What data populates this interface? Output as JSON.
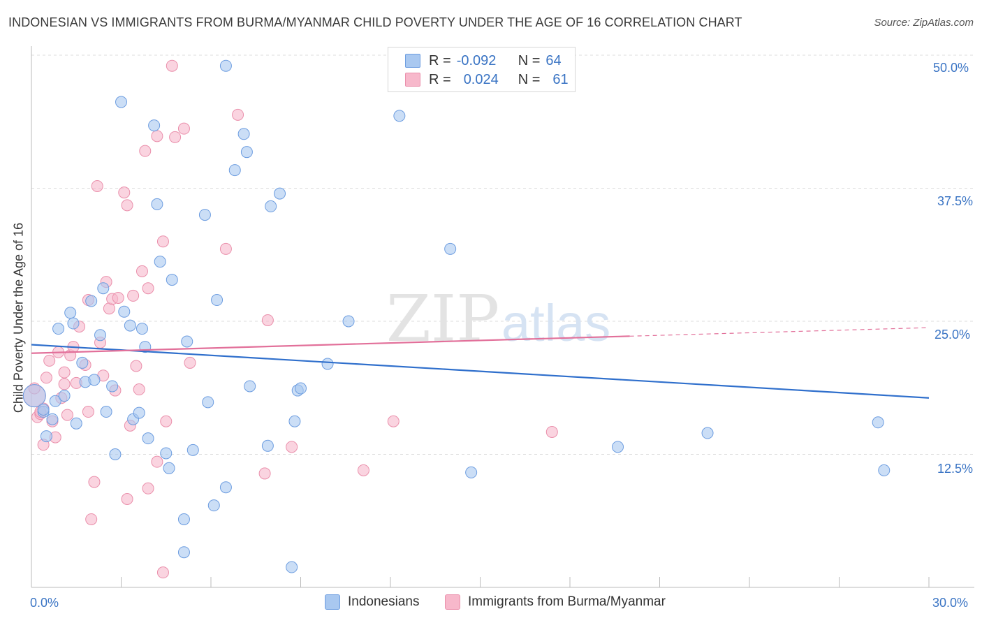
{
  "header": {
    "title": "INDONESIAN VS IMMIGRANTS FROM BURMA/MYANMAR CHILD POVERTY UNDER THE AGE OF 16 CORRELATION CHART",
    "source": "Source: ZipAtlas.com"
  },
  "watermark": {
    "zip": "ZIP",
    "atlas": "atlas"
  },
  "legend": {
    "rows": [
      {
        "r_label": "R =",
        "r_value": "-0.092",
        "n_label": "N =",
        "n_value": "64"
      },
      {
        "r_label": "R =",
        "r_value": "0.024",
        "n_label": "N =",
        "n_value": "61"
      }
    ]
  },
  "bottom_legend": {
    "series1": "Indonesians",
    "series2": "Immigrants from Burma/Myanmar"
  },
  "colors": {
    "series1_fill": "#a9c8f0",
    "series1_stroke": "#6d9de0",
    "series1_line": "#2f6fcc",
    "series2_fill": "#f7b8cb",
    "series2_stroke": "#ea8fab",
    "series2_line": "#e2709a",
    "tick_text": "#3a74c4",
    "grid": "#dddddd"
  },
  "chart_data": {
    "type": "scatter",
    "title": "INDONESIAN VS IMMIGRANTS FROM BURMA/MYANMAR CHILD POVERTY UNDER THE AGE OF 16 CORRELATION CHART",
    "xlabel": "",
    "ylabel": "Child Poverty Under the Age of 16",
    "xlim": [
      0,
      30
    ],
    "ylim": [
      0,
      50
    ],
    "x_tick_labels": [
      "0.0%",
      "30.0%"
    ],
    "y_ticks": [
      12.5,
      25.0,
      37.5,
      50.0
    ],
    "y_tick_labels": [
      "12.5%",
      "25.0%",
      "37.5%",
      "50.0%"
    ],
    "grid": "horizontal dashed",
    "legend_position": "top-center",
    "series": [
      {
        "name": "Indonesians",
        "r": -0.092,
        "n": 64,
        "trend": {
          "x": [
            0,
            30
          ],
          "y": [
            22.8,
            17.8
          ]
        },
        "points": [
          [
            0.1,
            18.0
          ],
          [
            0.4,
            16.5
          ],
          [
            0.4,
            16.7
          ],
          [
            0.5,
            14.2
          ],
          [
            0.7,
            15.8
          ],
          [
            0.8,
            17.5
          ],
          [
            0.9,
            24.3
          ],
          [
            1.1,
            18.0
          ],
          [
            1.3,
            25.8
          ],
          [
            1.4,
            24.8
          ],
          [
            1.5,
            15.4
          ],
          [
            1.7,
            21.1
          ],
          [
            1.8,
            19.3
          ],
          [
            2.0,
            26.9
          ],
          [
            2.1,
            19.5
          ],
          [
            2.3,
            23.7
          ],
          [
            2.4,
            28.1
          ],
          [
            2.5,
            16.5
          ],
          [
            2.7,
            18.9
          ],
          [
            2.8,
            12.5
          ],
          [
            3.0,
            45.6
          ],
          [
            3.1,
            25.9
          ],
          [
            3.3,
            24.6
          ],
          [
            3.4,
            15.8
          ],
          [
            3.6,
            16.4
          ],
          [
            3.7,
            24.3
          ],
          [
            3.8,
            22.6
          ],
          [
            3.9,
            14.0
          ],
          [
            4.1,
            43.4
          ],
          [
            4.2,
            36.0
          ],
          [
            4.3,
            30.6
          ],
          [
            4.5,
            12.6
          ],
          [
            4.6,
            11.2
          ],
          [
            4.7,
            28.9
          ],
          [
            5.1,
            6.4
          ],
          [
            5.1,
            3.3
          ],
          [
            5.2,
            23.1
          ],
          [
            5.4,
            12.9
          ],
          [
            5.8,
            35.0
          ],
          [
            5.9,
            17.4
          ],
          [
            6.1,
            7.7
          ],
          [
            6.2,
            27.0
          ],
          [
            6.5,
            49.0
          ],
          [
            6.5,
            9.4
          ],
          [
            6.8,
            39.2
          ],
          [
            7.1,
            42.6
          ],
          [
            7.2,
            40.9
          ],
          [
            7.3,
            18.9
          ],
          [
            7.9,
            13.3
          ],
          [
            8.0,
            35.8
          ],
          [
            8.3,
            37.0
          ],
          [
            8.7,
            1.9
          ],
          [
            8.8,
            15.6
          ],
          [
            8.9,
            18.5
          ],
          [
            9.0,
            18.7
          ],
          [
            9.9,
            21.0
          ],
          [
            10.6,
            25.0
          ],
          [
            12.3,
            44.3
          ],
          [
            14.0,
            31.8
          ],
          [
            14.7,
            10.8
          ],
          [
            19.6,
            13.2
          ],
          [
            22.6,
            14.5
          ],
          [
            28.3,
            15.5
          ],
          [
            28.5,
            11.0
          ]
        ]
      },
      {
        "name": "Immigrants from Burma/Myanmar",
        "r": 0.024,
        "n": 61,
        "trend": {
          "x": [
            0,
            20,
            30
          ],
          "y": [
            22.0,
            23.6,
            24.4
          ]
        },
        "points": [
          [
            0.1,
            18.0
          ],
          [
            0.2,
            16.0
          ],
          [
            0.3,
            16.3
          ],
          [
            0.4,
            16.8
          ],
          [
            0.4,
            13.4
          ],
          [
            0.5,
            19.7
          ],
          [
            0.6,
            21.3
          ],
          [
            0.7,
            15.6
          ],
          [
            0.8,
            14.1
          ],
          [
            0.9,
            22.1
          ],
          [
            1.0,
            17.8
          ],
          [
            1.1,
            19.1
          ],
          [
            1.1,
            20.2
          ],
          [
            1.2,
            16.2
          ],
          [
            1.3,
            21.8
          ],
          [
            1.4,
            22.6
          ],
          [
            1.5,
            19.2
          ],
          [
            1.6,
            24.5
          ],
          [
            1.8,
            20.9
          ],
          [
            1.9,
            16.5
          ],
          [
            1.9,
            27.0
          ],
          [
            2.0,
            6.4
          ],
          [
            2.1,
            9.9
          ],
          [
            2.2,
            37.7
          ],
          [
            2.3,
            23.0
          ],
          [
            2.4,
            19.9
          ],
          [
            2.5,
            28.7
          ],
          [
            2.6,
            26.2
          ],
          [
            2.7,
            27.1
          ],
          [
            2.8,
            18.5
          ],
          [
            2.9,
            27.2
          ],
          [
            3.1,
            37.1
          ],
          [
            3.2,
            35.9
          ],
          [
            3.2,
            8.3
          ],
          [
            3.3,
            15.2
          ],
          [
            3.4,
            27.4
          ],
          [
            3.5,
            20.8
          ],
          [
            3.6,
            18.6
          ],
          [
            3.7,
            29.7
          ],
          [
            3.8,
            41.0
          ],
          [
            3.9,
            28.1
          ],
          [
            3.9,
            9.3
          ],
          [
            4.2,
            42.4
          ],
          [
            4.2,
            11.8
          ],
          [
            4.4,
            1.4
          ],
          [
            4.4,
            32.5
          ],
          [
            4.5,
            15.6
          ],
          [
            4.7,
            49.0
          ],
          [
            4.8,
            42.3
          ],
          [
            5.1,
            43.1
          ],
          [
            5.3,
            21.1
          ],
          [
            6.5,
            31.8
          ],
          [
            6.9,
            44.4
          ],
          [
            7.8,
            10.7
          ],
          [
            7.9,
            25.1
          ],
          [
            8.7,
            13.2
          ],
          [
            11.1,
            11.0
          ],
          [
            12.1,
            15.6
          ],
          [
            17.4,
            14.6
          ],
          [
            0.1,
            18.7
          ],
          [
            0.3,
            16.5
          ]
        ]
      }
    ]
  },
  "axes": {
    "y_label": "Child Poverty Under the Age of 16",
    "x_left_label": "0.0%",
    "x_right_label": "30.0%",
    "y_labels": [
      "12.5%",
      "25.0%",
      "37.5%",
      "50.0%"
    ]
  }
}
